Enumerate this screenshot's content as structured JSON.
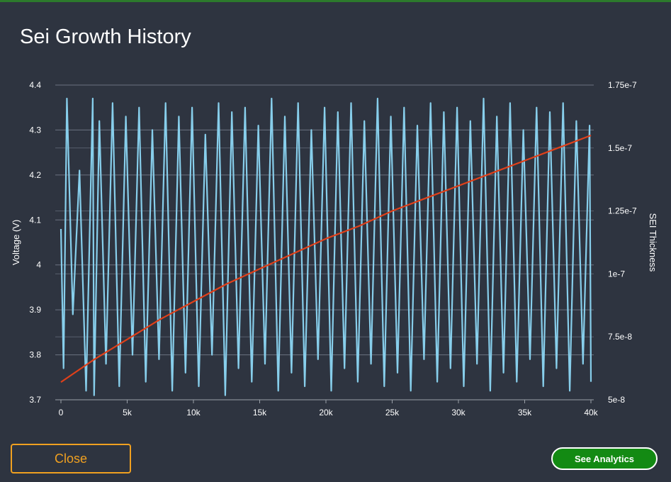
{
  "dialog": {
    "title": "Sei Growth History",
    "close_label": "Close",
    "analytics_label": "See Analytics"
  },
  "colors": {
    "background": "#2e3440",
    "voltage_line": "#87ceeb",
    "sei_line": "#e0401a",
    "grid": "#6b7280",
    "close_border": "#f0a020",
    "analytics_bg": "#138a13"
  },
  "chart_data": {
    "type": "line",
    "title": "",
    "xlabel": "",
    "ylabel_left": "Voltage (V)",
    "ylabel_right": "SEI Thickness",
    "xlim": [
      0,
      40000
    ],
    "ylim_left": [
      3.7,
      4.4
    ],
    "ylim_right": [
      5e-08,
      1.75e-07
    ],
    "x_ticks": [
      "0",
      "5k",
      "10k",
      "15k",
      "20k",
      "25k",
      "30k",
      "35k",
      "40k"
    ],
    "y_left_ticks": [
      "3.7",
      "3.8",
      "3.9",
      "4",
      "4.1",
      "4.2",
      "4.3",
      "4.4"
    ],
    "y_right_ticks": [
      "5e-8",
      "7.5e-8",
      "1e-7",
      "1.25e-7",
      "1.5e-7",
      "1.75e-7"
    ],
    "grid": true,
    "series": [
      {
        "name": "Voltage",
        "axis": "left",
        "x": [
          0,
          200,
          450,
          900,
          1400,
          1900,
          2400,
          2500,
          2900,
          3400,
          3900,
          4400,
          4900,
          5400,
          5900,
          6400,
          6900,
          7400,
          7900,
          8400,
          8900,
          9400,
          9900,
          10400,
          10900,
          11400,
          11900,
          12400,
          12900,
          13400,
          13900,
          14400,
          14900,
          15400,
          15900,
          16400,
          16900,
          17400,
          17900,
          18400,
          18900,
          19400,
          19900,
          20400,
          20900,
          21400,
          21900,
          22400,
          22900,
          23400,
          23900,
          24400,
          24900,
          25400,
          25900,
          26400,
          26900,
          27400,
          27900,
          28400,
          28900,
          29400,
          29900,
          30400,
          30900,
          31400,
          31900,
          32400,
          32900,
          33400,
          33900,
          34400,
          34900,
          35400,
          35900,
          36400,
          36900,
          37400,
          37900,
          38400,
          38900,
          39400,
          39900,
          40000
        ],
        "values": [
          4.08,
          3.77,
          4.37,
          3.89,
          4.21,
          3.72,
          4.37,
          3.71,
          4.32,
          3.78,
          4.36,
          3.73,
          4.33,
          3.8,
          4.35,
          3.74,
          4.3,
          3.79,
          4.36,
          3.72,
          4.33,
          3.76,
          4.35,
          3.73,
          4.29,
          3.8,
          4.36,
          3.71,
          4.34,
          3.77,
          4.35,
          3.74,
          4.31,
          3.78,
          4.37,
          3.72,
          4.33,
          3.76,
          4.36,
          3.73,
          4.3,
          3.79,
          4.35,
          3.72,
          4.34,
          3.77,
          4.36,
          3.74,
          4.32,
          3.78,
          4.37,
          3.73,
          4.33,
          3.76,
          4.35,
          3.72,
          4.31,
          3.79,
          4.36,
          3.74,
          4.34,
          3.77,
          4.35,
          3.73,
          4.32,
          3.78,
          4.37,
          3.72,
          4.33,
          3.76,
          4.36,
          3.74,
          4.3,
          3.79,
          4.35,
          3.73,
          4.34,
          3.77,
          4.36,
          3.72,
          4.32,
          3.78,
          4.31,
          3.74
        ]
      },
      {
        "name": "SEI Thickness",
        "axis": "right",
        "x": [
          0,
          2500,
          5000,
          7500,
          10000,
          12500,
          15000,
          17500,
          20000,
          22500,
          25000,
          27500,
          30000,
          32500,
          35000,
          37500,
          40000
        ],
        "values": [
          5.7e-08,
          6.6e-08,
          7.4e-08,
          8.2e-08,
          8.9e-08,
          9.6e-08,
          1.02e-07,
          1.08e-07,
          1.14e-07,
          1.19e-07,
          1.25e-07,
          1.3e-07,
          1.35e-07,
          1.4e-07,
          1.45e-07,
          1.5e-07,
          1.55e-07
        ]
      }
    ]
  }
}
